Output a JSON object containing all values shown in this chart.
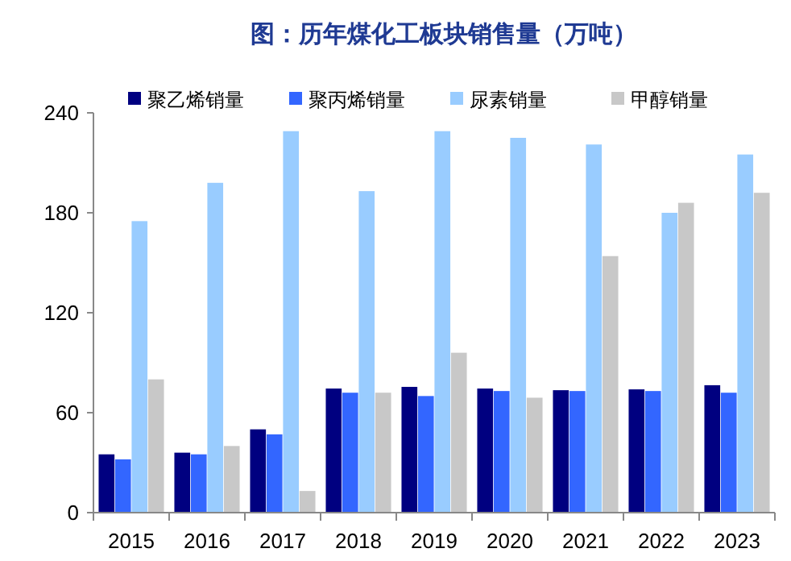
{
  "chart_data": {
    "type": "bar",
    "title": "图：历年煤化工板块销售量（万吨）",
    "categories": [
      "2015",
      "2016",
      "2017",
      "2018",
      "2019",
      "2020",
      "2021",
      "2022",
      "2023"
    ],
    "series": [
      {
        "name": "聚乙烯销量",
        "color": "#000080",
        "values": [
          35,
          36,
          50,
          74.5,
          75.5,
          74.5,
          73.5,
          74,
          76.5
        ]
      },
      {
        "name": "聚丙烯销量",
        "color": "#3366ff",
        "values": [
          32,
          35,
          47,
          72,
          70,
          73,
          73,
          73,
          72
        ]
      },
      {
        "name": "尿素销量",
        "color": "#99ccff",
        "values": [
          175,
          198,
          229,
          193,
          229,
          225,
          221,
          180,
          215
        ]
      },
      {
        "name": "甲醇销量",
        "color": "#c8c8c8",
        "values": [
          80,
          40,
          13,
          72,
          96,
          69,
          154,
          186,
          192
        ]
      }
    ],
    "ylim": [
      0,
      240
    ],
    "yticks": [
      0,
      60,
      120,
      180,
      240
    ],
    "grid": false,
    "legend": "top"
  }
}
